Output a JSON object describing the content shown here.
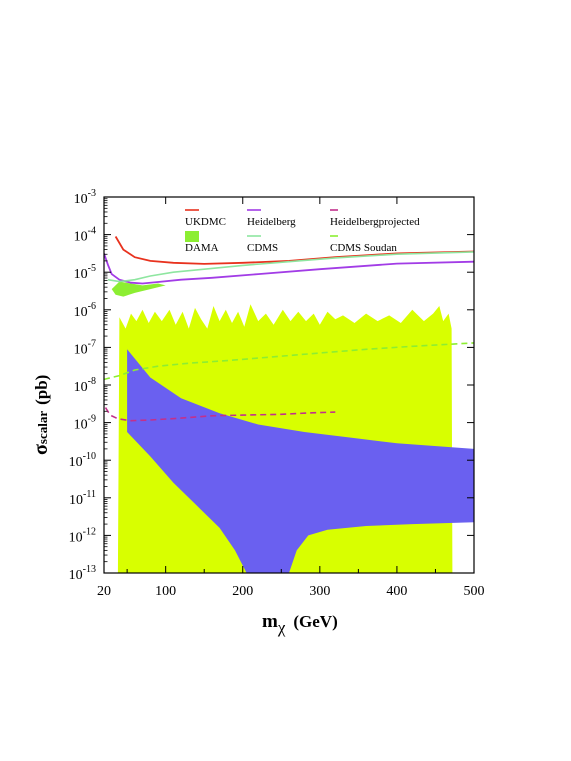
{
  "chart_data": {
    "type": "area",
    "title": "",
    "xlabel": {
      "main": "m",
      "sub": "χ",
      "unit": "(GeV)"
    },
    "ylabel": {
      "main": "σ",
      "sub": "scalar",
      "unit": "(pb)"
    },
    "xlim": [
      20,
      500
    ],
    "ylim_exp": [
      -13,
      -3
    ],
    "yscale": "log",
    "x_ticks": [
      20,
      100,
      200,
      300,
      400,
      500
    ],
    "y_ticks": [
      {
        "base": "10",
        "exp": "-3",
        "v": -3
      },
      {
        "base": "10",
        "exp": "-4",
        "v": -4
      },
      {
        "base": "10",
        "exp": "-5",
        "v": -5
      },
      {
        "base": "10",
        "exp": "-6",
        "v": -6
      },
      {
        "base": "10",
        "exp": "-7",
        "v": -7
      },
      {
        "base": "10",
        "exp": "-8",
        "v": -8
      },
      {
        "base": "10",
        "exp": "-9",
        "v": -9
      },
      {
        "base": "10",
        "exp": "-10",
        "v": -10
      },
      {
        "base": "10",
        "exp": "-11",
        "v": -11
      },
      {
        "base": "10",
        "exp": "-12",
        "v": -12
      },
      {
        "base": "10",
        "exp": "-13",
        "v": -13
      }
    ],
    "legend": [
      {
        "name": "UKDMC",
        "color": "#e8321e",
        "kind": "line"
      },
      {
        "name": "Heidelberg",
        "color": "#a23ce6",
        "kind": "line"
      },
      {
        "name": "Heidelbergprojected",
        "color": "#c2308c",
        "kind": "dash"
      },
      {
        "name": "DAMA",
        "color": "#8cee32",
        "kind": "patch"
      },
      {
        "name": "CDMS",
        "color": "#8ee6a0",
        "kind": "line"
      },
      {
        "name": "CDMS Soudan",
        "color": "#8cee32",
        "kind": "dash"
      }
    ],
    "regions": [
      {
        "name": "yellow-region",
        "color": "#d8ff00",
        "upper": [
          [
            38,
            -13
          ],
          [
            40,
            -6.2
          ],
          [
            48,
            -6.5
          ],
          [
            55,
            -6.1
          ],
          [
            62,
            -6.3
          ],
          [
            70,
            -6.0
          ],
          [
            78,
            -6.35
          ],
          [
            86,
            -6.05
          ],
          [
            95,
            -6.3
          ],
          [
            105,
            -6.0
          ],
          [
            113,
            -6.4
          ],
          [
            122,
            -6.05
          ],
          [
            130,
            -6.5
          ],
          [
            138,
            -5.95
          ],
          [
            146,
            -6.25
          ],
          [
            154,
            -6.5
          ],
          [
            162,
            -5.9
          ],
          [
            170,
            -6.3
          ],
          [
            178,
            -6.0
          ],
          [
            186,
            -6.35
          ],
          [
            194,
            -6.05
          ],
          [
            202,
            -6.45
          ],
          [
            210,
            -5.85
          ],
          [
            220,
            -6.3
          ],
          [
            230,
            -6.1
          ],
          [
            240,
            -6.4
          ],
          [
            252,
            -6.0
          ],
          [
            262,
            -6.3
          ],
          [
            272,
            -6.05
          ],
          [
            282,
            -6.3
          ],
          [
            292,
            -6.1
          ],
          [
            300,
            -6.4
          ],
          [
            310,
            -6.05
          ],
          [
            320,
            -6.25
          ],
          [
            330,
            -6.15
          ],
          [
            345,
            -6.35
          ],
          [
            360,
            -6.1
          ],
          [
            375,
            -6.3
          ],
          [
            390,
            -6.15
          ],
          [
            405,
            -6.35
          ],
          [
            420,
            -6.0
          ],
          [
            435,
            -6.3
          ],
          [
            447,
            -6.1
          ],
          [
            455,
            -5.9
          ],
          [
            460,
            -6.3
          ],
          [
            467,
            -6.1
          ],
          [
            471,
            -6.5
          ],
          [
            472,
            -13
          ]
        ],
        "lower": [
          [
            38,
            -13
          ],
          [
            472,
            -13
          ]
        ]
      },
      {
        "name": "blue-region",
        "color": "#6a60f0",
        "upper": [
          [
            50,
            -7.05
          ],
          [
            80,
            -7.8
          ],
          [
            120,
            -8.35
          ],
          [
            170,
            -8.75
          ],
          [
            220,
            -9.05
          ],
          [
            280,
            -9.25
          ],
          [
            340,
            -9.4
          ],
          [
            400,
            -9.55
          ],
          [
            500,
            -9.7
          ]
        ],
        "lower": [
          [
            50,
            -9.25
          ],
          [
            80,
            -9.9
          ],
          [
            110,
            -10.6
          ],
          [
            140,
            -11.2
          ],
          [
            170,
            -11.8
          ],
          [
            190,
            -12.4
          ],
          [
            205,
            -13
          ],
          [
            260,
            -13
          ],
          [
            270,
            -12.4
          ],
          [
            285,
            -12.0
          ],
          [
            310,
            -11.85
          ],
          [
            360,
            -11.75
          ],
          [
            420,
            -11.7
          ],
          [
            500,
            -11.65
          ]
        ]
      },
      {
        "name": "dama-region",
        "color": "#8cee32",
        "upper": [
          [
            30,
            -5.45
          ],
          [
            40,
            -5.25
          ],
          [
            55,
            -5.3
          ],
          [
            70,
            -5.35
          ],
          [
            90,
            -5.3
          ],
          [
            100,
            -5.35
          ],
          [
            105,
            -5.3
          ]
        ],
        "lower": [
          [
            30,
            -5.45
          ],
          [
            35,
            -5.6
          ],
          [
            45,
            -5.65
          ],
          [
            60,
            -5.55
          ],
          [
            80,
            -5.45
          ],
          [
            100,
            -5.35
          ],
          [
            105,
            -5.3
          ]
        ]
      }
    ],
    "series": [
      {
        "name": "UKDMC",
        "color": "#e8321e",
        "dash": "",
        "width": 1.8,
        "points": [
          [
            35,
            -4.05
          ],
          [
            45,
            -4.4
          ],
          [
            60,
            -4.6
          ],
          [
            80,
            -4.7
          ],
          [
            110,
            -4.75
          ],
          [
            150,
            -4.78
          ],
          [
            200,
            -4.75
          ],
          [
            260,
            -4.7
          ],
          [
            320,
            -4.6
          ],
          [
            400,
            -4.5
          ],
          [
            500,
            -4.45
          ]
        ]
      },
      {
        "name": "Heidelberg",
        "color": "#a23ce6",
        "dash": "",
        "width": 1.8,
        "points": [
          [
            20,
            -4.5
          ],
          [
            25,
            -4.8
          ],
          [
            30,
            -5.05
          ],
          [
            40,
            -5.2
          ],
          [
            55,
            -5.28
          ],
          [
            70,
            -5.3
          ],
          [
            90,
            -5.26
          ],
          [
            120,
            -5.2
          ],
          [
            160,
            -5.15
          ],
          [
            220,
            -5.05
          ],
          [
            300,
            -4.92
          ],
          [
            400,
            -4.77
          ],
          [
            500,
            -4.72
          ]
        ]
      },
      {
        "name": "CDMS",
        "color": "#8ee6a0",
        "dash": "",
        "width": 1.6,
        "points": [
          [
            25,
            -5.2
          ],
          [
            40,
            -5.25
          ],
          [
            60,
            -5.2
          ],
          [
            80,
            -5.1
          ],
          [
            110,
            -5.0
          ],
          [
            150,
            -4.92
          ],
          [
            200,
            -4.82
          ],
          [
            260,
            -4.72
          ],
          [
            320,
            -4.62
          ],
          [
            400,
            -4.52
          ],
          [
            500,
            -4.46
          ]
        ]
      },
      {
        "name": "CDMS Soudan",
        "color": "#8cee32",
        "dash": "6,4",
        "width": 1.6,
        "points": [
          [
            20,
            -7.85
          ],
          [
            40,
            -7.75
          ],
          [
            60,
            -7.6
          ],
          [
            90,
            -7.5
          ],
          [
            130,
            -7.42
          ],
          [
            180,
            -7.35
          ],
          [
            240,
            -7.25
          ],
          [
            300,
            -7.15
          ],
          [
            360,
            -7.05
          ],
          [
            420,
            -6.97
          ],
          [
            500,
            -6.88
          ]
        ]
      },
      {
        "name": "Heidelbergprojected",
        "color": "#c2308c",
        "dash": "6,4",
        "width": 1.6,
        "points": [
          [
            22,
            -8.6
          ],
          [
            28,
            -8.8
          ],
          [
            38,
            -8.9
          ],
          [
            55,
            -8.95
          ],
          [
            80,
            -8.93
          ],
          [
            120,
            -8.88
          ],
          [
            160,
            -8.82
          ],
          [
            200,
            -8.8
          ],
          [
            250,
            -8.78
          ],
          [
            290,
            -8.74
          ],
          [
            320,
            -8.72
          ]
        ]
      }
    ]
  }
}
